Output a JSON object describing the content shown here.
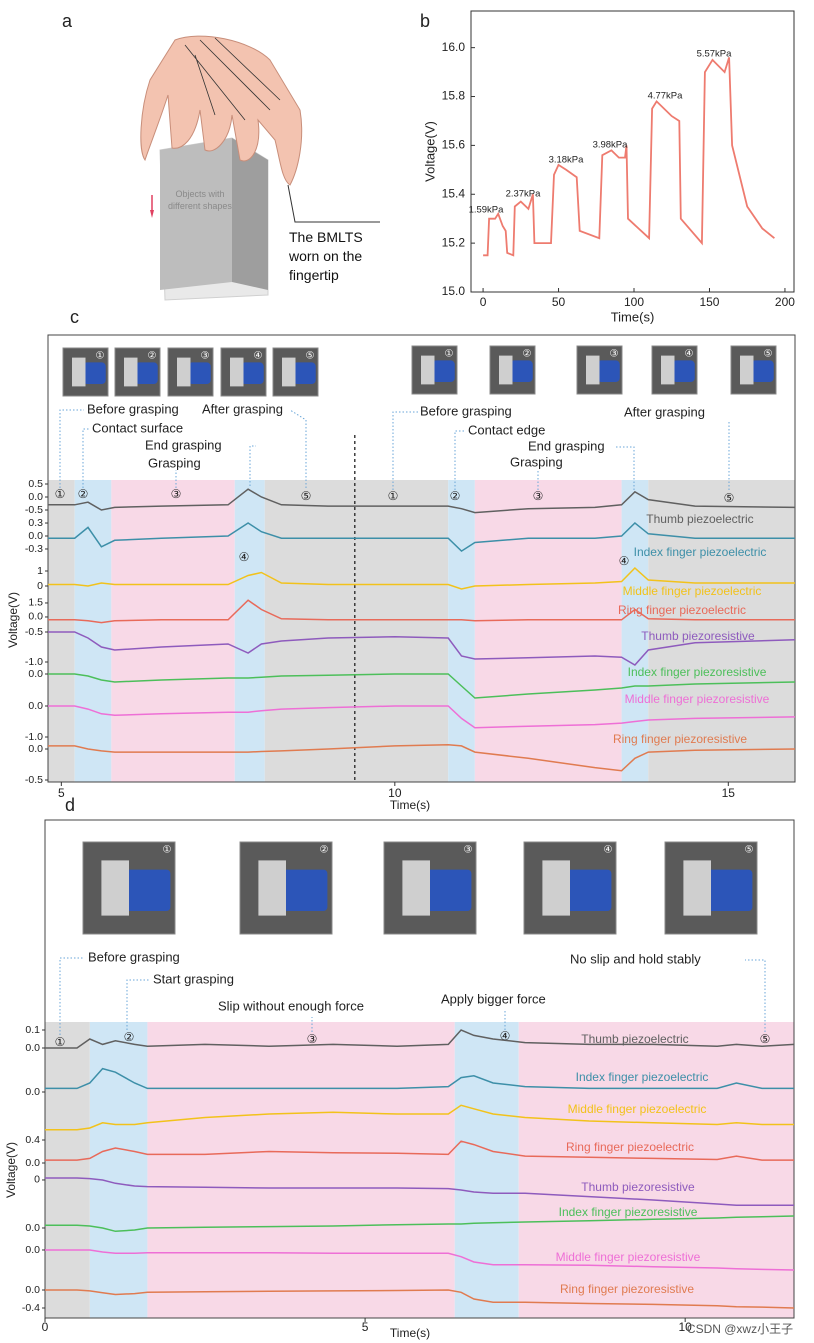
{
  "chart_data": [
    {
      "type": "illustration",
      "panel": "a",
      "object_label": "Objects with different shapes",
      "callout": "The BMLTS worn on the fingertip"
    },
    {
      "type": "line",
      "panel": "b",
      "xlabel": "Time(s)",
      "ylabel": "Voltage(V)",
      "color": "#ee7b6f",
      "xlim": [
        -8,
        206
      ],
      "xticks": [
        0,
        50,
        100,
        150,
        200
      ],
      "ylim": [
        15.0,
        16.15
      ],
      "yticks": [
        {
          "value": 15,
          "label": "15.0"
        },
        15.2,
        15.4,
        15.6,
        15.8,
        {
          "value": 16,
          "label": "16.0"
        }
      ],
      "x": [
        0,
        3,
        4,
        8,
        10,
        13,
        15,
        16,
        20,
        21,
        25,
        30,
        33,
        34,
        45,
        47,
        50,
        55,
        62,
        64,
        77,
        79,
        85,
        90,
        94,
        95,
        96,
        110,
        112,
        115,
        125,
        130,
        131,
        145,
        147,
        152,
        160,
        163,
        165,
        175,
        185,
        193
      ],
      "values": [
        15.15,
        15.15,
        15.3,
        15.3,
        15.32,
        15.27,
        15.25,
        15.16,
        15.15,
        15.35,
        15.37,
        15.34,
        15.4,
        15.2,
        15.2,
        15.48,
        15.52,
        15.5,
        15.47,
        15.25,
        15.22,
        15.56,
        15.58,
        15.55,
        15.55,
        15.6,
        15.3,
        15.22,
        15.75,
        15.78,
        15.72,
        15.7,
        15.3,
        15.2,
        15.9,
        15.95,
        15.9,
        15.96,
        15.6,
        15.35,
        15.26,
        15.22
      ],
      "annotations": [
        "1.59kPa",
        "2.37kPa",
        "3.18kPa",
        "3.98kPa",
        "4.77kPa",
        "5.57kPa"
      ]
    },
    {
      "type": "stacked_line",
      "panel": "c",
      "xlabel": "Time(s)",
      "ylabel": "Voltage(V)",
      "xlim": [
        4.8,
        16
      ],
      "xticks": [
        5,
        10,
        15
      ],
      "divider_x": 9.4,
      "regions": [
        {
          "x": [
            4.8,
            5.2
          ],
          "color": "#dcdcdc"
        },
        {
          "x": [
            5.2,
            5.75
          ],
          "color": "#cfe6f5"
        },
        {
          "x": [
            5.75,
            7.6
          ],
          "color": "#f8d9e7"
        },
        {
          "x": [
            7.6,
            8.05
          ],
          "color": "#cfe6f5"
        },
        {
          "x": [
            8.05,
            10.8
          ],
          "color": "#dcdcdc"
        },
        {
          "x": [
            10.8,
            11.2
          ],
          "color": "#cfe6f5"
        },
        {
          "x": [
            11.2,
            13.4
          ],
          "color": "#f8d9e7"
        },
        {
          "x": [
            13.4,
            13.8
          ],
          "color": "#cfe6f5"
        },
        {
          "x": [
            13.8,
            16
          ],
          "color": "#dcdcdc"
        }
      ],
      "markers": [
        "①",
        "②",
        "③",
        "④",
        "⑤"
      ],
      "annotations": [
        "Before grasping",
        "Contact surface",
        "End grasping",
        "Grasping",
        "After grasping",
        "Before grasping",
        "Contact edge",
        "End grasping",
        "Grasping",
        "After grasping"
      ],
      "x": [
        4.8,
        5.2,
        5.4,
        5.6,
        5.8,
        6.5,
        7.5,
        7.8,
        8.0,
        8.3,
        9,
        10,
        10.8,
        11,
        11.2,
        12,
        13,
        13.4,
        13.6,
        13.8,
        14.5,
        16
      ],
      "series": [
        {
          "name": "Thumb piezoelectric",
          "color": "#606060",
          "ylim": [
            -0.8,
            0.6
          ],
          "yticks": [
            0.5,
            {
              "value": 0,
              "label": "0.0"
            },
            -0.5
          ],
          "values": [
            -0.3,
            -0.3,
            -0.2,
            -0.5,
            -0.4,
            -0.35,
            -0.3,
            0.3,
            0.0,
            -0.3,
            -0.35,
            -0.35,
            -0.35,
            -0.45,
            -0.6,
            -0.45,
            -0.4,
            -0.3,
            0.2,
            -0.1,
            -0.35,
            -0.4
          ]
        },
        {
          "name": "Index finger piezoelectric",
          "color": "#3d8fa8",
          "ylim": [
            -0.4,
            0.4
          ],
          "yticks": [
            0.3,
            {
              "value": 0,
              "label": "0.0"
            },
            -0.3
          ],
          "values": [
            -0.05,
            -0.05,
            0.2,
            -0.25,
            -0.1,
            -0.05,
            0.0,
            0.3,
            0.1,
            -0.05,
            -0.05,
            -0.05,
            -0.05,
            -0.35,
            -0.15,
            -0.05,
            -0.05,
            0.0,
            0.3,
            0.05,
            -0.05,
            -0.05
          ]
        },
        {
          "name": "Middle finger piezoelectric",
          "color": "#f2c21b",
          "ylim": [
            -0.5,
            1.5
          ],
          "yticks": [
            1,
            0
          ],
          "values": [
            0.1,
            0.1,
            0,
            0.2,
            0.1,
            0.1,
            0.1,
            0.7,
            0.9,
            0.2,
            0.1,
            0.1,
            0.1,
            -0.2,
            0,
            0.1,
            0.2,
            0.3,
            1.2,
            0.4,
            0.2,
            0.2
          ]
        },
        {
          "name": "Ring finger piezoelectric",
          "color": "#e86a5a",
          "ylim": [
            -1,
            2
          ],
          "yticks": [
            1.5,
            {
              "value": 0,
              "label": "0.0"
            }
          ],
          "values": [
            -0.3,
            -0.3,
            -0.4,
            -0.6,
            -0.4,
            -0.3,
            -0.3,
            1.8,
            0.8,
            -0.2,
            -0.3,
            -0.3,
            -0.3,
            -0.3,
            -0.4,
            -0.3,
            -0.3,
            -0.3,
            0.8,
            -0.2,
            -0.3,
            -0.3
          ]
        },
        {
          "name": "Thumb piezoresistive",
          "color": "#8e5bbd",
          "ylim": [
            -1.2,
            -0.3
          ],
          "yticks": [
            -0.5,
            {
              "value": -1,
              "label": "-1.0"
            }
          ],
          "values": [
            -0.5,
            -0.5,
            -0.6,
            -0.75,
            -0.8,
            -0.75,
            -0.7,
            -0.85,
            -0.7,
            -0.65,
            -0.6,
            -0.58,
            -0.6,
            -0.9,
            -0.95,
            -0.93,
            -0.9,
            -0.92,
            -1.05,
            -0.8,
            -0.68,
            -0.63
          ]
        },
        {
          "name": "Index finger piezoresistive",
          "color": "#4cbf5a",
          "ylim": [
            -0.8,
            0.2
          ],
          "yticks": [
            {
              "value": 0,
              "label": "0.0"
            }
          ],
          "values": [
            0,
            0,
            -0.05,
            -0.15,
            -0.2,
            -0.15,
            -0.1,
            -0.1,
            -0.08,
            -0.05,
            -0.03,
            0,
            0,
            -0.3,
            -0.6,
            -0.5,
            -0.4,
            -0.35,
            -0.3,
            -0.3,
            -0.25,
            -0.2
          ]
        },
        {
          "name": "Middle finger piezoresistive",
          "color": "#ee6fd6",
          "ylim": [
            -1.2,
            0.3
          ],
          "yticks": [
            {
              "value": 0,
              "label": "0.0"
            },
            {
              "value": -1,
              "label": "-1.0"
            }
          ],
          "values": [
            0,
            0,
            -0.1,
            -0.25,
            -0.3,
            -0.25,
            -0.2,
            -0.2,
            -0.15,
            -0.1,
            -0.05,
            0,
            0,
            -0.4,
            -0.7,
            -0.65,
            -0.6,
            -0.55,
            -0.5,
            -0.45,
            -0.4,
            -0.35
          ]
        },
        {
          "name": "Ring finger piezoresistive",
          "color": "#e07b50",
          "ylim": [
            -0.6,
            0.2
          ],
          "yticks": [
            {
              "value": 0,
              "label": "0.0"
            },
            -0.5
          ],
          "values": [
            0.05,
            0.05,
            0,
            -0.03,
            -0.05,
            -0.05,
            -0.05,
            -0.05,
            -0.04,
            -0.03,
            0.0,
            0.05,
            0.07,
            0.05,
            -0.05,
            -0.15,
            -0.3,
            -0.35,
            -0.15,
            -0.05,
            -0.02,
            0.0
          ]
        }
      ]
    },
    {
      "type": "stacked_line",
      "panel": "d",
      "xlabel": "Time(s)",
      "ylabel": "Voltage(V)",
      "xlim": [
        0,
        11.7
      ],
      "xticks": [
        0,
        5,
        10
      ],
      "regions": [
        {
          "x": [
            0,
            0.7
          ],
          "color": "#dcdcdc"
        },
        {
          "x": [
            0.7,
            1.6
          ],
          "color": "#cfe6f5"
        },
        {
          "x": [
            1.6,
            6.4
          ],
          "color": "#f8d9e7"
        },
        {
          "x": [
            6.4,
            7.4
          ],
          "color": "#cfe6f5"
        },
        {
          "x": [
            7.4,
            11.7
          ],
          "color": "#f8d9e7"
        }
      ],
      "markers": [
        "①",
        "②",
        "③",
        "④",
        "⑤"
      ],
      "annotations": [
        "Before grasping",
        "Start grasping",
        "Slip without enough force",
        "Apply bigger force",
        "No slip and hold stably"
      ],
      "watermark": "CSDN @xwz小王子",
      "x": [
        0,
        0.5,
        0.7,
        0.9,
        1.1,
        1.4,
        1.6,
        2.5,
        3.5,
        4.5,
        5.5,
        6.3,
        6.5,
        6.7,
        7,
        7.5,
        8.5,
        9.5,
        10.5,
        10.8,
        11.2,
        11.7
      ],
      "series": [
        {
          "name": "Thumb piezoelectric",
          "color": "#606060",
          "ylim": [
            -0.05,
            0.15
          ],
          "yticks": [
            0.1,
            {
              "value": 0,
              "label": "0.0"
            }
          ],
          "values": [
            0,
            0,
            0.05,
            0.02,
            0.04,
            0.02,
            0.01,
            0.02,
            0.01,
            0.02,
            0.01,
            0.02,
            0.1,
            0.07,
            0.05,
            0.03,
            0.02,
            0.02,
            0.01,
            0.02,
            0.01,
            0.02
          ]
        },
        {
          "name": "Index finger piezoelectric",
          "color": "#3d8fa8",
          "ylim": [
            -0.05,
            0.2
          ],
          "yticks": [
            {
              "value": 0,
              "label": "0.0"
            }
          ],
          "values": [
            0.02,
            0.02,
            0.05,
            0.13,
            0.11,
            0.05,
            0.02,
            0.02,
            0.02,
            0.02,
            0.02,
            0.03,
            0.08,
            0.09,
            0.05,
            0.03,
            0.02,
            0.02,
            0.02,
            0.05,
            0.02,
            0.02
          ]
        },
        {
          "name": "Middle finger piezoelectric",
          "color": "#f2c21b",
          "ylim": [
            0,
            0.2
          ],
          "yticks": [],
          "values": [
            0.03,
            0.03,
            0.04,
            0.07,
            0.06,
            0.06,
            0.07,
            0.1,
            0.12,
            0.13,
            0.12,
            0.12,
            0.17,
            0.15,
            0.12,
            0.1,
            0.08,
            0.07,
            0.06,
            0.07,
            0.06,
            0.06
          ]
        },
        {
          "name": "Ring finger piezoelectric",
          "color": "#e86a5a",
          "ylim": [
            -0.1,
            0.5
          ],
          "yticks": [
            0.4,
            {
              "value": 0,
              "label": "0.0"
            }
          ],
          "values": [
            0.05,
            0.05,
            0.08,
            0.2,
            0.26,
            0.2,
            0.15,
            0.15,
            0.2,
            0.18,
            0.17,
            0.15,
            0.38,
            0.32,
            0.2,
            0.12,
            0.1,
            0.08,
            0.06,
            0.12,
            0.05,
            0.05
          ]
        },
        {
          "name": "Thumb piezoresistive",
          "color": "#8e5bbd",
          "ylim": [
            -0.5,
            0.1
          ],
          "yticks": [
            0
          ],
          "values": [
            0.03,
            0.03,
            0.02,
            0,
            -0.05,
            -0.09,
            -0.1,
            -0.11,
            -0.12,
            -0.12,
            -0.12,
            -0.13,
            -0.15,
            -0.18,
            -0.2,
            -0.2,
            -0.25,
            -0.3,
            -0.36,
            -0.38,
            -0.38,
            -0.38
          ]
        },
        {
          "name": "Index finger piezoresistive",
          "color": "#4cbf5a",
          "ylim": [
            -0.2,
            0.3
          ],
          "yticks": [
            {
              "value": 0,
              "label": "0.0"
            }
          ],
          "values": [
            0.04,
            0.04,
            0.03,
            0,
            -0.05,
            -0.03,
            0,
            0.01,
            0.02,
            0.03,
            0.05,
            0.06,
            0.06,
            0.07,
            0.08,
            0.09,
            0.11,
            0.13,
            0.15,
            0.16,
            0.17,
            0.18
          ]
        },
        {
          "name": "Middle finger piezoresistive",
          "color": "#ee6fd6",
          "ylim": [
            -0.4,
            0.1
          ],
          "yticks": [
            {
              "value": 0,
              "label": "0.0"
            }
          ],
          "values": [
            0,
            0,
            0,
            -0.03,
            -0.05,
            -0.05,
            -0.04,
            -0.04,
            -0.04,
            -0.05,
            -0.05,
            -0.05,
            -0.1,
            -0.18,
            -0.22,
            -0.22,
            -0.23,
            -0.25,
            -0.27,
            -0.28,
            -0.29,
            -0.3
          ]
        },
        {
          "name": "Ring finger piezoresistive",
          "color": "#e07b50",
          "ylim": [
            -0.5,
            0.1
          ],
          "yticks": [
            {
              "value": 0,
              "label": "0.0"
            },
            -0.4
          ],
          "values": [
            0,
            0,
            -0.02,
            -0.06,
            -0.1,
            -0.08,
            -0.05,
            -0.04,
            -0.03,
            -0.02,
            -0.01,
            0,
            -0.05,
            -0.2,
            -0.27,
            -0.27,
            -0.3,
            -0.32,
            -0.35,
            -0.37,
            -0.38,
            -0.4
          ]
        }
      ]
    }
  ]
}
